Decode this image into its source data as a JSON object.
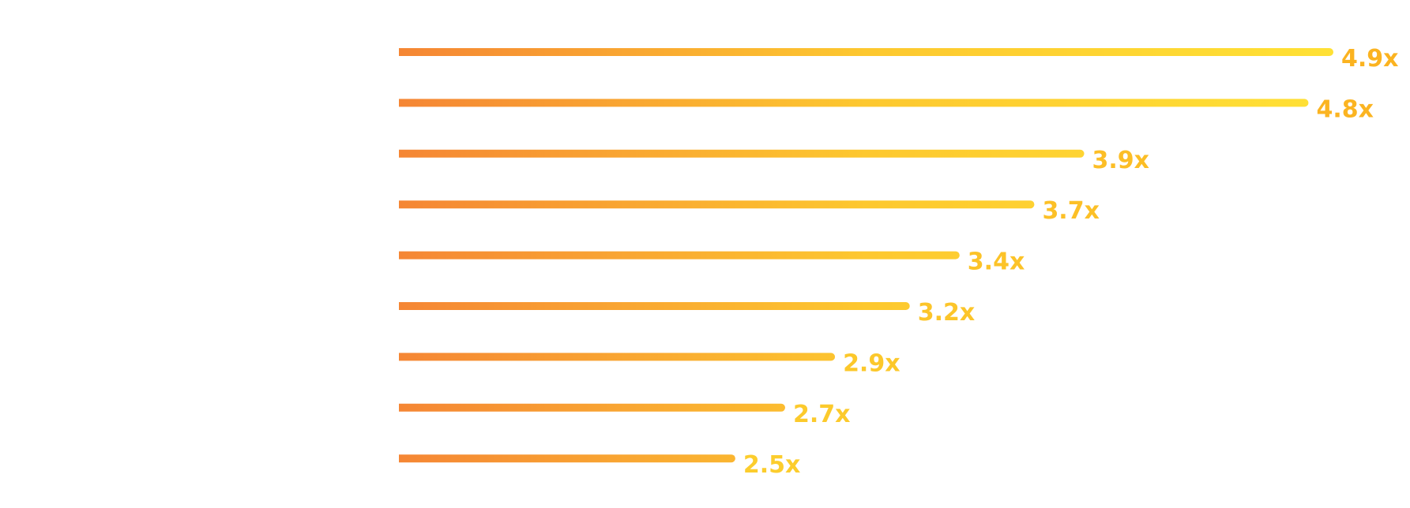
{
  "chart_data": {
    "type": "bar",
    "orientation": "horizontal",
    "categories": [
      "",
      "",
      "",
      "",
      "",
      "",
      "",
      "",
      ""
    ],
    "values": [
      4.9,
      4.8,
      3.9,
      3.7,
      3.4,
      3.2,
      2.9,
      2.7,
      2.5
    ],
    "value_labels": [
      "4.9x",
      "4.8x",
      "3.9x",
      "3.7x",
      "3.4x",
      "3.2x",
      "2.9x",
      "2.7x",
      "2.5x"
    ],
    "title": "",
    "xlabel": "",
    "ylabel": "",
    "xlim": [
      1.15,
      4.9
    ],
    "grid": false,
    "legend": "none",
    "colors": {
      "gradient_start": "#F58634",
      "gradient_mid": "#FDC82F",
      "gradient_end": "#FFE135",
      "label_start": "#FBB320",
      "label_end": "#FDDB35"
    }
  }
}
